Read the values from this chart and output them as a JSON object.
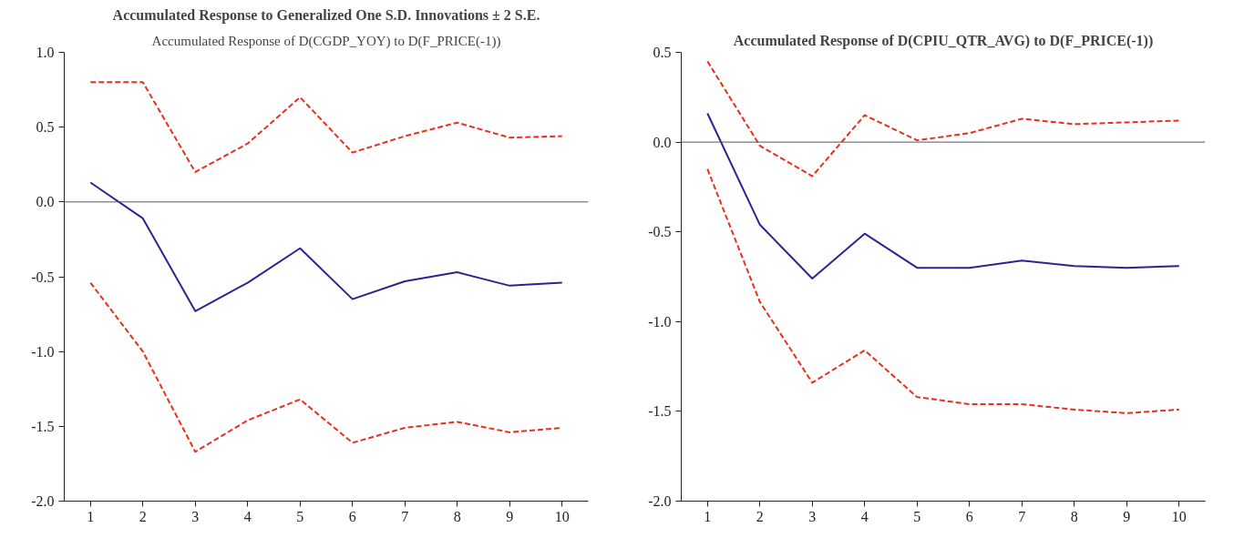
{
  "chart_data": [
    {
      "type": "line",
      "title": "Accumulated Response to Generalized One S.D. Innovations ± 2 S.E.",
      "subtitle": "Accumulated Response of D(CGDP_YOY) to D(F_PRICE(-1))",
      "categories": [
        "1",
        "2",
        "3",
        "4",
        "5",
        "6",
        "7",
        "8",
        "9",
        "10"
      ],
      "series": [
        {
          "color": "#e8301e",
          "line_style": "dashed",
          "values": [
            0.8,
            0.8,
            0.2,
            0.39,
            0.7,
            0.33,
            0.44,
            0.53,
            0.43,
            0.44
          ]
        },
        {
          "color": "#2b2590",
          "line_style": "solid",
          "values": [
            0.13,
            -0.11,
            -0.73,
            -0.54,
            -0.31,
            -0.65,
            -0.53,
            -0.47,
            -0.56,
            -0.54
          ]
        },
        {
          "color": "#e8301e",
          "line_style": "dashed",
          "values": [
            -0.54,
            -1.0,
            -1.67,
            -1.46,
            -1.32,
            -1.61,
            -1.51,
            -1.47,
            -1.54,
            -1.51
          ]
        }
      ],
      "ylim": [
        -2.0,
        1.0
      ],
      "yticks": [
        {
          "value": -2,
          "label": "-2.0"
        },
        {
          "value": -1.5,
          "label": "-1.5"
        },
        {
          "value": -1,
          "label": "-1.0"
        },
        {
          "value": -0.5,
          "label": "-0.5"
        },
        {
          "value": 0,
          "label": "0.0"
        },
        {
          "value": 0.5,
          "label": "0.5"
        },
        {
          "value": 1,
          "label": "1.0"
        }
      ],
      "ref_lines": [
        {
          "axis": "y",
          "value": 0,
          "color": "#555555"
        }
      ],
      "grid": false
    },
    {
      "type": "line",
      "title": "Accumulated Response of D(CPIU_QTR_AVG) to D(F_PRICE(-1))",
      "categories": [
        "1",
        "2",
        "3",
        "4",
        "5",
        "6",
        "7",
        "8",
        "9",
        "10"
      ],
      "series": [
        {
          "color": "#e8301e",
          "line_style": "dashed",
          "values": [
            0.45,
            -0.02,
            -0.19,
            0.15,
            0.01,
            0.05,
            0.13,
            0.1,
            0.11,
            0.12
          ]
        },
        {
          "color": "#2b2590",
          "line_style": "solid",
          "values": [
            0.16,
            -0.46,
            -0.76,
            -0.51,
            -0.7,
            -0.7,
            -0.66,
            -0.69,
            -0.7,
            -0.69
          ]
        },
        {
          "color": "#e8301e",
          "line_style": "dashed",
          "values": [
            -0.15,
            -0.89,
            -1.34,
            -1.16,
            -1.42,
            -1.46,
            -1.46,
            -1.49,
            -1.51,
            -1.49
          ]
        }
      ],
      "ylim": [
        -2.0,
        0.5
      ],
      "yticks": [
        {
          "value": -2,
          "label": "-2.0"
        },
        {
          "value": -1.5,
          "label": "-1.5"
        },
        {
          "value": -1,
          "label": "-1.0"
        },
        {
          "value": -0.5,
          "label": "-0.5"
        },
        {
          "value": 0,
          "label": "0.0"
        },
        {
          "value": 0.5,
          "label": "0.5"
        }
      ],
      "ref_lines": [
        {
          "axis": "y",
          "value": 0,
          "color": "#555555"
        }
      ],
      "grid": false
    }
  ]
}
